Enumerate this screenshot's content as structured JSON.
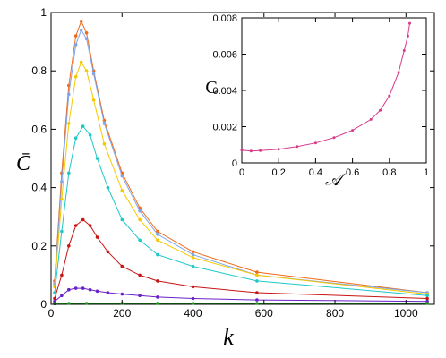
{
  "chart_data": [
    {
      "type": "line",
      "xlabel": "k",
      "ylabel": "C̄",
      "xlim": [
        0,
        1080
      ],
      "ylim": [
        0,
        1
      ],
      "xticks": [
        "0",
        "200",
        "400",
        "600",
        "800",
        "1000"
      ],
      "yticks": [
        "0",
        "0.2",
        "0.4",
        "0.6",
        "0.8",
        "1"
      ],
      "grid": false,
      "legend": "none",
      "series": [
        {
          "color": "#f06a1a",
          "x": [
            10,
            30,
            50,
            70,
            85,
            100,
            120,
            150,
            200,
            250,
            300,
            400,
            580,
            1060
          ],
          "y": [
            0.08,
            0.45,
            0.75,
            0.92,
            0.97,
            0.93,
            0.8,
            0.63,
            0.45,
            0.33,
            0.25,
            0.18,
            0.11,
            0.04
          ]
        },
        {
          "color": "#7fa6e8",
          "x": [
            10,
            30,
            50,
            70,
            85,
            100,
            120,
            150,
            200,
            250,
            300,
            400,
            580,
            1060
          ],
          "y": [
            0.07,
            0.42,
            0.72,
            0.89,
            0.94,
            0.91,
            0.79,
            0.62,
            0.44,
            0.32,
            0.24,
            0.17,
            0.1,
            0.04
          ]
        },
        {
          "color": "#f5c800",
          "x": [
            10,
            30,
            50,
            70,
            85,
            100,
            120,
            150,
            200,
            250,
            300,
            400,
            580,
            1060
          ],
          "y": [
            0.06,
            0.36,
            0.62,
            0.78,
            0.83,
            0.8,
            0.7,
            0.55,
            0.39,
            0.29,
            0.22,
            0.16,
            0.1,
            0.035
          ]
        },
        {
          "color": "#1ec8c8",
          "x": [
            10,
            30,
            50,
            70,
            90,
            110,
            130,
            160,
            200,
            250,
            300,
            400,
            580,
            1060
          ],
          "y": [
            0.04,
            0.25,
            0.45,
            0.57,
            0.61,
            0.58,
            0.5,
            0.4,
            0.29,
            0.22,
            0.17,
            0.13,
            0.08,
            0.03
          ]
        },
        {
          "color": "#c81414",
          "x": [
            10,
            30,
            50,
            70,
            90,
            110,
            130,
            160,
            200,
            250,
            300,
            400,
            580,
            1060
          ],
          "y": [
            0.02,
            0.1,
            0.2,
            0.27,
            0.29,
            0.27,
            0.23,
            0.18,
            0.13,
            0.1,
            0.08,
            0.06,
            0.04,
            0.02
          ]
        },
        {
          "color": "#6a22c8",
          "x": [
            10,
            30,
            50,
            70,
            90,
            110,
            130,
            160,
            200,
            250,
            300,
            400,
            580,
            1060
          ],
          "y": [
            0.01,
            0.03,
            0.05,
            0.055,
            0.055,
            0.05,
            0.045,
            0.04,
            0.035,
            0.03,
            0.025,
            0.02,
            0.015,
            0.01
          ]
        },
        {
          "color": "#1a9a1a",
          "x": [
            10,
            50,
            100,
            200,
            300,
            400,
            580,
            1060
          ],
          "y": [
            0.002,
            0.003,
            0.003,
            0.003,
            0.003,
            0.003,
            0.003,
            0.003
          ]
        }
      ]
    },
    {
      "type": "line",
      "xlabel": "𝒜",
      "ylabel": "C",
      "xlim": [
        0,
        1
      ],
      "ylim": [
        0,
        0.008
      ],
      "xticks": [
        "0",
        "0.2",
        "0.4",
        "0.6",
        "0.8",
        "1"
      ],
      "yticks": [
        "0",
        "0.002",
        "0.004",
        "0.006",
        "0.008"
      ],
      "grid": false,
      "legend": "none",
      "series": [
        {
          "color": "#d63a8a",
          "x": [
            0.0,
            0.05,
            0.1,
            0.2,
            0.3,
            0.4,
            0.5,
            0.6,
            0.7,
            0.75,
            0.8,
            0.85,
            0.88,
            0.9,
            0.91
          ],
          "y": [
            0.0007,
            0.00065,
            0.00068,
            0.00075,
            0.0009,
            0.0011,
            0.0014,
            0.0018,
            0.0024,
            0.0029,
            0.0037,
            0.005,
            0.0062,
            0.007,
            0.0077
          ]
        }
      ]
    }
  ]
}
